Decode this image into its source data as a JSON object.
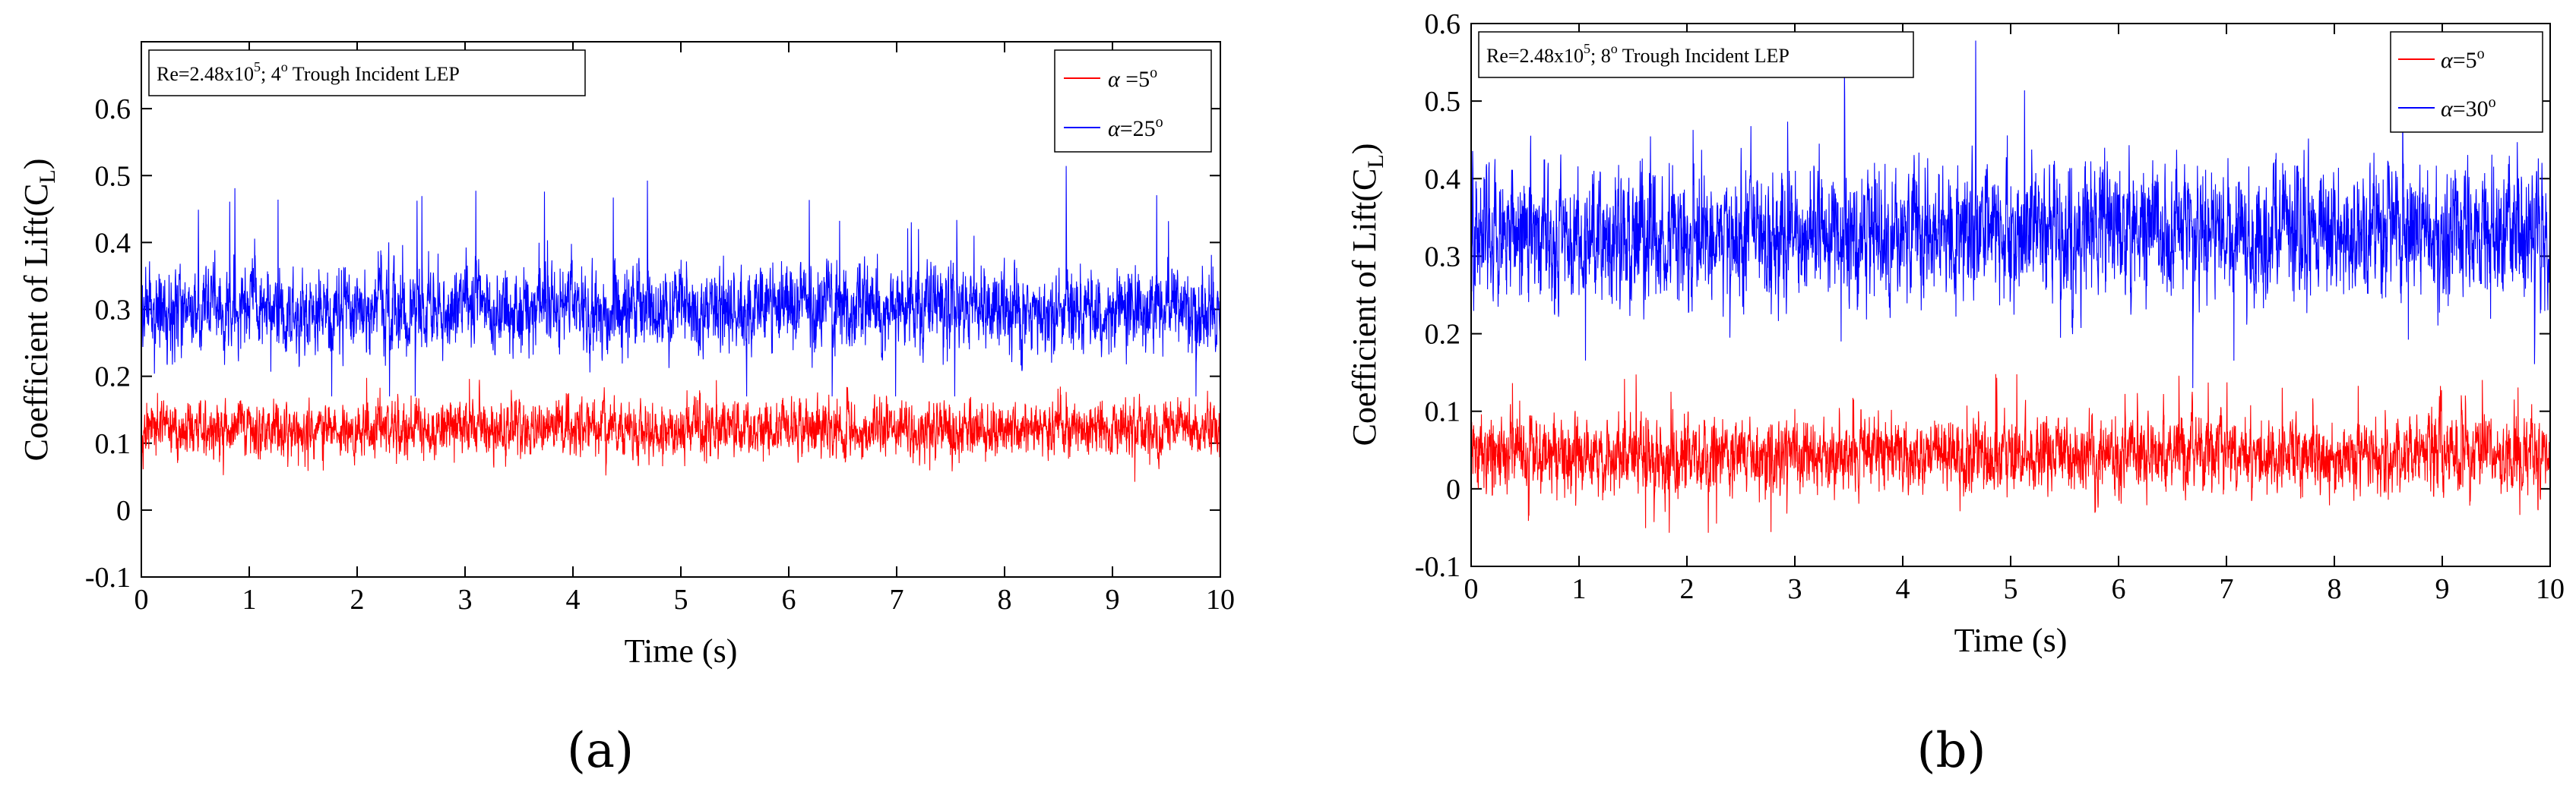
{
  "figure": {
    "panel_labels": [
      "(a)",
      "(b)"
    ]
  },
  "chart_data": [
    {
      "type": "line",
      "panel": "(a)",
      "xlabel": "Time (s)",
      "ylabel": "Coefficient of Lift(C",
      "ylabel_sub": "L",
      "ylabel_close": ")",
      "xlim": [
        0,
        10
      ],
      "ylim": [
        -0.1,
        0.7
      ],
      "xticks": [
        0,
        1,
        2,
        3,
        4,
        5,
        6,
        7,
        8,
        9,
        10
      ],
      "yticks": [
        -0.1,
        0,
        0.1,
        0.2,
        0.3,
        0.4,
        0.5,
        0.6
      ],
      "annotation": {
        "prefix": "Re=2.48x10",
        "sup": "5",
        "mid": "; 4",
        "sup2": "o",
        "suffix": " Trough Incident LEP"
      },
      "legend_position": "top-right",
      "series": [
        {
          "name": "α =5°",
          "label_alpha": "α",
          "label_text": " =5",
          "label_sup": "o",
          "color": "#ff0000",
          "mean": 0.12,
          "fluctuation": 0.03,
          "peak_max": 0.2,
          "peak_min": 0.02
        },
        {
          "name": "α=25°",
          "label_alpha": "α",
          "label_text": "=25",
          "label_sup": "o",
          "color": "#0000ff",
          "mean": 0.3,
          "fluctuation": 0.045,
          "peak_max": 0.53,
          "peak_min": 0.17
        }
      ]
    },
    {
      "type": "line",
      "panel": "(b)",
      "xlabel": "Time (s)",
      "ylabel": "Coefficient of Lift(C",
      "ylabel_sub": "L",
      "ylabel_close": ")",
      "xlim": [
        0,
        10
      ],
      "ylim": [
        -0.1,
        0.6
      ],
      "xticks": [
        0,
        1,
        2,
        3,
        4,
        5,
        6,
        7,
        8,
        9,
        10
      ],
      "yticks": [
        -0.1,
        0,
        0.1,
        0.2,
        0.3,
        0.4,
        0.5,
        0.6
      ],
      "annotation": {
        "prefix": "Re=2.48x10",
        "sup": "5",
        "mid": "; 8",
        "sup2": "o",
        "suffix": " Trough Incident LEP"
      },
      "legend_position": "top-right",
      "series": [
        {
          "name": "α=5°",
          "label_alpha": "α",
          "label_text": "=5",
          "label_sup": "o",
          "color": "#ff0000",
          "mean": 0.045,
          "fluctuation": 0.035,
          "peak_max": 0.15,
          "peak_min": -0.08
        },
        {
          "name": "α=30°",
          "label_alpha": "α",
          "label_text": "=30",
          "label_sup": "o",
          "color": "#0000ff",
          "mean": 0.33,
          "fluctuation": 0.06,
          "peak_max": 0.58,
          "peak_min": 0.13
        }
      ]
    }
  ]
}
